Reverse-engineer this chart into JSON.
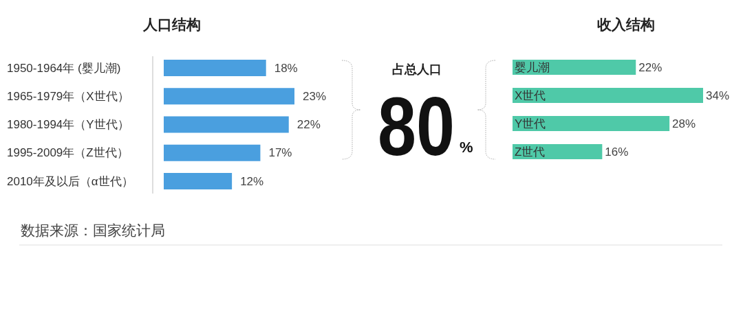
{
  "chart_data": [
    {
      "type": "bar",
      "orientation": "horizontal",
      "title": "人口结构",
      "categories": [
        "1950-1964年 (婴儿潮)",
        "1965-1979年（X世代）",
        "1980-1994年（Y世代）",
        "1995-2009年（Z世代）",
        "2010年及以后（α世代）"
      ],
      "values": [
        18,
        23,
        22,
        17,
        12
      ],
      "value_labels": [
        "18%",
        "23%",
        "22%",
        "17%",
        "12%"
      ],
      "color": "#4a9fdf",
      "annotations": [
        "数据来源：国家统计局"
      ]
    },
    {
      "type": "other",
      "title": "占总人口",
      "annotations": [
        "80",
        "%"
      ]
    },
    {
      "type": "bar",
      "orientation": "horizontal",
      "title": "收入结构",
      "categories": [
        "婴儿潮",
        "X世代",
        "Y世代",
        "Z世代"
      ],
      "values": [
        22,
        34,
        28,
        16
      ],
      "value_labels": [
        "22%",
        "34%",
        "28%",
        "16%"
      ],
      "color": "#4fc9a8"
    }
  ]
}
